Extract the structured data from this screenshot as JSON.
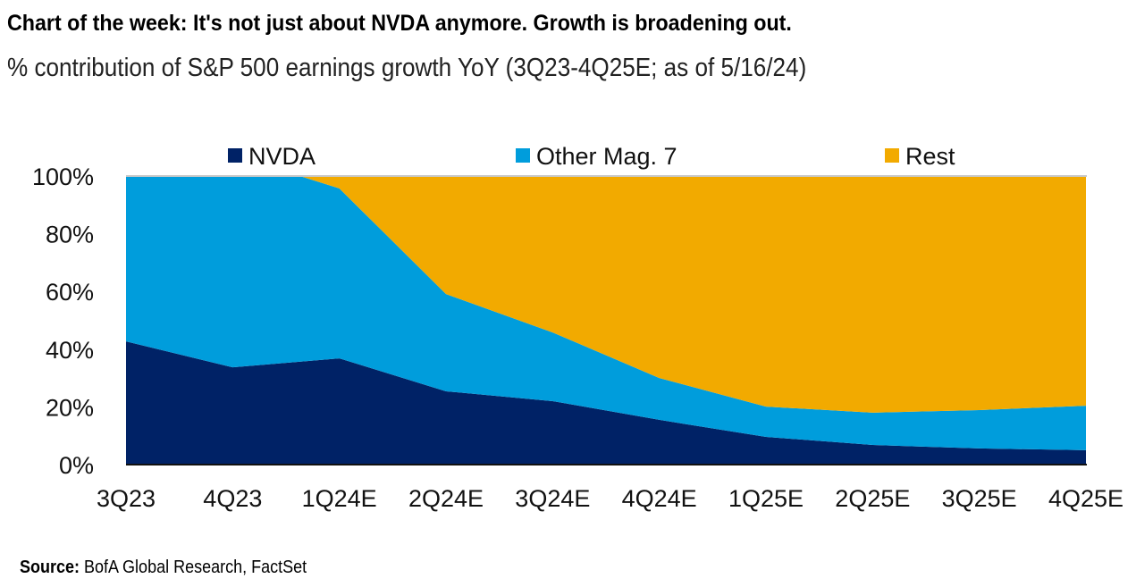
{
  "title": "Chart of the week: It's not just about NVDA anymore. Growth is broadening out.",
  "subtitle": "% contribution of S&P 500 earnings growth YoY (3Q23-4Q25E; as of 5/16/24)",
  "source_label": "Source:",
  "source_text": "BofA Global Research, FactSet",
  "chart_data": {
    "type": "area",
    "stacked": true,
    "categories": [
      "3Q23",
      "4Q23",
      "1Q24E",
      "2Q24E",
      "3Q24E",
      "4Q24E",
      "1Q25E",
      "2Q25E",
      "3Q25E",
      "4Q25E"
    ],
    "series": [
      {
        "name": "NVDA",
        "color": "#002266",
        "values": [
          42.7,
          33.7,
          36.8,
          25.4,
          22.0,
          15.5,
          9.6,
          6.8,
          5.6,
          5.0
        ]
      },
      {
        "name": "Other Mag. 7",
        "color": "#009ddc",
        "values": [
          57.3,
          73.6,
          58.9,
          33.7,
          23.8,
          14.5,
          10.5,
          11.2,
          13.3,
          15.4
        ]
      },
      {
        "name": "Rest",
        "color": "#f2aa00",
        "values": [
          0.0,
          -7.3,
          4.3,
          40.9,
          54.2,
          70.0,
          79.9,
          82.0,
          81.1,
          79.6
        ]
      }
    ],
    "ylim": [
      0,
      100
    ],
    "yticks": [
      0,
      20,
      40,
      60,
      80,
      100
    ],
    "ytick_labels": [
      "0%",
      "20%",
      "40%",
      "60%",
      "80%",
      "100%"
    ],
    "xlabel": "",
    "ylabel": "",
    "legend_position": "top",
    "grid": false
  }
}
